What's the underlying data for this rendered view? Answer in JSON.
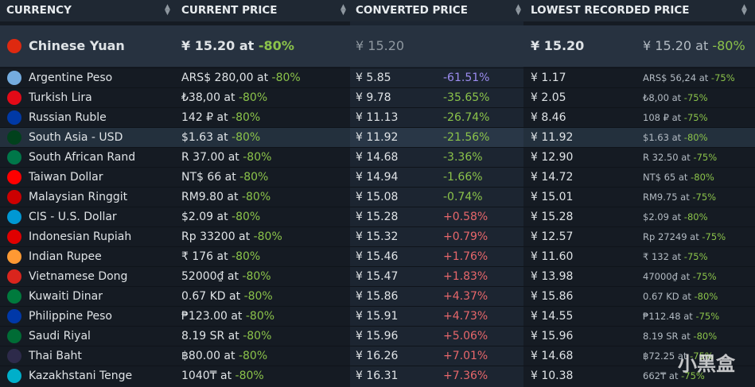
{
  "header": {
    "columns": [
      "CURRENCY",
      "CURRENT PRICE",
      "CONVERTED PRICE",
      "LOWEST RECORDED PRICE"
    ]
  },
  "featured": {
    "currency": "Chinese Yuan",
    "price": "¥ 15.20 at",
    "discount": "-80%",
    "converted": "¥ 15.20",
    "lowest": "¥ 15.20",
    "lowest_price": "¥ 15.20 at",
    "lowest_discount": "-80%"
  },
  "rows": [
    {
      "currency": "Argentine Peso",
      "price": "ARS$ 280,00 at",
      "discount": "-80%",
      "converted": "¥ 5.85",
      "diff": "-61.51%",
      "lowest": "¥ 1.17",
      "lowest_price": "ARS$ 56,24 at",
      "lowest_discount": "-75%"
    },
    {
      "currency": "Turkish Lira",
      "price": "₺38,00 at",
      "discount": "-80%",
      "converted": "¥ 9.78",
      "diff": "-35.65%",
      "lowest": "¥ 2.05",
      "lowest_price": "₺8,00 at",
      "lowest_discount": "-75%"
    },
    {
      "currency": "Russian Ruble",
      "price": "142 ₽ at",
      "discount": "-80%",
      "converted": "¥ 11.13",
      "diff": "-26.74%",
      "lowest": "¥ 8.46",
      "lowest_price": "108 ₽ at",
      "lowest_discount": "-75%"
    },
    {
      "currency": "South Asia - USD",
      "price": "$1.63 at",
      "discount": "-80%",
      "converted": "¥ 11.92",
      "diff": "-21.56%",
      "lowest": "¥ 11.92",
      "lowest_price": "$1.63 at",
      "lowest_discount": "-80%"
    },
    {
      "currency": "South African Rand",
      "price": "R 37.00 at",
      "discount": "-80%",
      "converted": "¥ 14.68",
      "diff": "-3.36%",
      "lowest": "¥ 12.90",
      "lowest_price": "R 32.50 at",
      "lowest_discount": "-75%"
    },
    {
      "currency": "Taiwan Dollar",
      "price": "NT$ 66 at",
      "discount": "-80%",
      "converted": "¥ 14.94",
      "diff": "-1.66%",
      "lowest": "¥ 14.72",
      "lowest_price": "NT$ 65 at",
      "lowest_discount": "-80%"
    },
    {
      "currency": "Malaysian Ringgit",
      "price": "RM9.80 at",
      "discount": "-80%",
      "converted": "¥ 15.08",
      "diff": "-0.74%",
      "lowest": "¥ 15.01",
      "lowest_price": "RM9.75 at",
      "lowest_discount": "-75%"
    },
    {
      "currency": "CIS - U.S. Dollar",
      "price": "$2.09 at",
      "discount": "-80%",
      "converted": "¥ 15.28",
      "diff": "+0.58%",
      "lowest": "¥ 15.28",
      "lowest_price": "$2.09 at",
      "lowest_discount": "-80%"
    },
    {
      "currency": "Indonesian Rupiah",
      "price": "Rp 33200 at",
      "discount": "-80%",
      "converted": "¥ 15.32",
      "diff": "+0.79%",
      "lowest": "¥ 12.57",
      "lowest_price": "Rp 27249 at",
      "lowest_discount": "-75%"
    },
    {
      "currency": "Indian Rupee",
      "price": "₹ 176 at",
      "discount": "-80%",
      "converted": "¥ 15.46",
      "diff": "+1.76%",
      "lowest": "¥ 11.60",
      "lowest_price": "₹ 132 at",
      "lowest_discount": "-75%"
    },
    {
      "currency": "Vietnamese Dong",
      "price": "52000₫ at",
      "discount": "-80%",
      "converted": "¥ 15.47",
      "diff": "+1.83%",
      "lowest": "¥ 13.98",
      "lowest_price": "47000₫ at",
      "lowest_discount": "-75%"
    },
    {
      "currency": "Kuwaiti Dinar",
      "price": "0.67 KD at",
      "discount": "-80%",
      "converted": "¥ 15.86",
      "diff": "+4.37%",
      "lowest": "¥ 15.86",
      "lowest_price": "0.67 KD at",
      "lowest_discount": "-80%"
    },
    {
      "currency": "Philippine Peso",
      "price": "₱123.00 at",
      "discount": "-80%",
      "converted": "¥ 15.91",
      "diff": "+4.73%",
      "lowest": "¥ 14.55",
      "lowest_price": "₱112.48 at",
      "lowest_discount": "-75%"
    },
    {
      "currency": "Saudi Riyal",
      "price": "8.19 SR at",
      "discount": "-80%",
      "converted": "¥ 15.96",
      "diff": "+5.06%",
      "lowest": "¥ 15.96",
      "lowest_price": "8.19 SR at",
      "lowest_discount": "-80%"
    },
    {
      "currency": "Thai Baht",
      "price": "฿80.00 at",
      "discount": "-80%",
      "converted": "¥ 16.26",
      "diff": "+7.01%",
      "lowest": "¥ 14.68",
      "lowest_price": "฿72.25 at",
      "lowest_discount": "-75%"
    },
    {
      "currency": "Kazakhstani Tenge",
      "price": "1040₸ at",
      "discount": "-80%",
      "converted": "¥ 16.31",
      "diff": "+7.36%",
      "lowest": "¥ 10.38",
      "lowest_price": "662₸ at",
      "lowest_discount": "-75%"
    }
  ],
  "watermark": "小黑盒"
}
